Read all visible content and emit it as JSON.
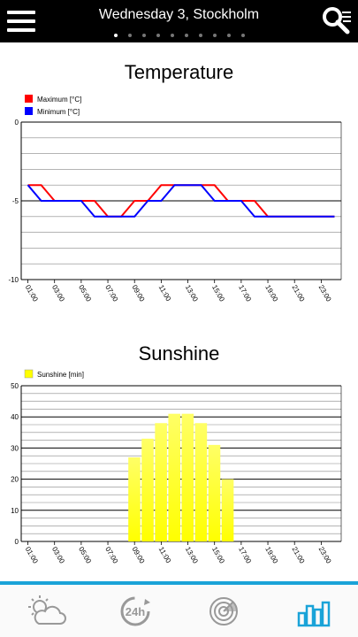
{
  "header": {
    "title": "Wednesday 3, Stockholm",
    "page_count": 10,
    "active_page": 0
  },
  "temperature": {
    "title": "Temperature",
    "chart_data": {
      "type": "line",
      "x": [
        "01:00",
        "02:00",
        "03:00",
        "04:00",
        "05:00",
        "06:00",
        "07:00",
        "08:00",
        "09:00",
        "10:00",
        "11:00",
        "12:00",
        "13:00",
        "14:00",
        "15:00",
        "16:00",
        "17:00",
        "18:00",
        "19:00",
        "20:00",
        "21:00",
        "22:00",
        "23:00",
        "24:00"
      ],
      "tick_labels": [
        "01:00",
        "03:00",
        "05:00",
        "07:00",
        "09:00",
        "11:00",
        "13:00",
        "15:00",
        "17:00",
        "19:00",
        "21:00",
        "23:00"
      ],
      "series": [
        {
          "name": "Maximum [°C]",
          "color": "#ff0000",
          "values": [
            -4,
            -4,
            -5,
            -5,
            -5,
            -5,
            -6,
            -6,
            -5,
            -5,
            -4,
            -4,
            -4,
            -4,
            -4,
            -5,
            -5,
            -5,
            -6,
            -6,
            -6,
            -6,
            -6,
            -6
          ]
        },
        {
          "name": "Minimum [°C]",
          "color": "#0000ff",
          "values": [
            -4,
            -5,
            -5,
            -5,
            -5,
            -6,
            -6,
            -6,
            -6,
            -5,
            -5,
            -4,
            -4,
            -4,
            -5,
            -5,
            -5,
            -6,
            -6,
            -6,
            -6,
            -6,
            -6,
            -6
          ]
        }
      ],
      "ylim": [
        -10,
        0
      ],
      "y_ticks": [
        "0",
        "-5",
        "-10"
      ],
      "grid": true
    }
  },
  "sunshine": {
    "title": "Sunshine",
    "chart_data": {
      "type": "bar",
      "x": [
        "01:00",
        "02:00",
        "03:00",
        "04:00",
        "05:00",
        "06:00",
        "07:00",
        "08:00",
        "09:00",
        "10:00",
        "11:00",
        "12:00",
        "13:00",
        "14:00",
        "15:00",
        "16:00",
        "17:00",
        "18:00",
        "19:00",
        "20:00",
        "21:00",
        "22:00",
        "23:00",
        "24:00"
      ],
      "tick_labels": [
        "01:00",
        "03:00",
        "05:00",
        "07:00",
        "09:00",
        "11:00",
        "13:00",
        "15:00",
        "17:00",
        "19:00",
        "21:00",
        "23:00"
      ],
      "series": [
        {
          "name": "Sunshine [min]",
          "color": "#ffff00",
          "values": [
            0,
            0,
            0,
            0,
            0,
            0,
            0,
            0,
            27,
            33,
            38,
            41,
            41,
            38,
            31,
            20,
            0,
            0,
            0,
            0,
            0,
            0,
            0,
            0
          ]
        }
      ],
      "ylim": [
        0,
        50
      ],
      "y_ticks": [
        "0",
        "10",
        "20",
        "30",
        "40",
        "50"
      ],
      "grid": true
    }
  },
  "bottom_nav": {
    "items": [
      {
        "name": "weather",
        "icon": "sun-cloud-icon",
        "active": false
      },
      {
        "name": "24h",
        "icon": "24h-icon",
        "label": "24h",
        "active": false
      },
      {
        "name": "radar",
        "icon": "radar-icon",
        "active": false
      },
      {
        "name": "charts",
        "icon": "bar-chart-icon",
        "active": true
      }
    ],
    "active_color": "#1aa3d8",
    "inactive_color": "#999999"
  }
}
